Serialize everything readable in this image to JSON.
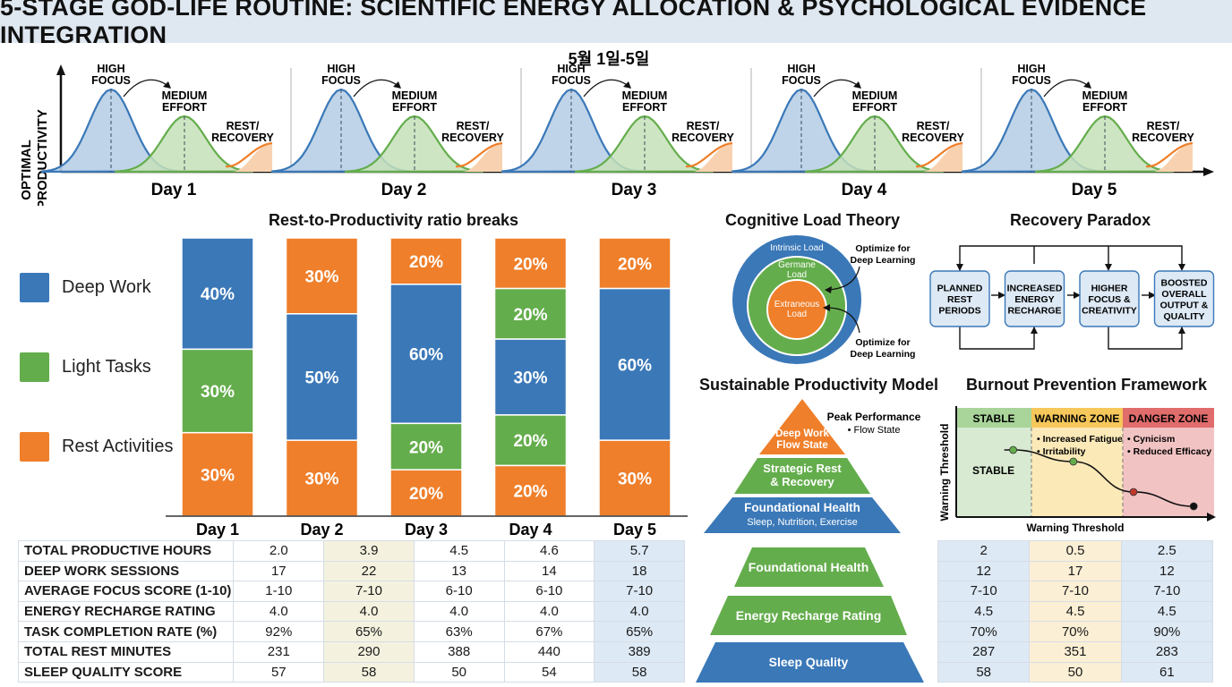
{
  "title": "5-STAGE GOD-LIFE ROUTINE: SCIENTIFIC ENERGY ALLOCATION & PSYCHOLOGICAL EVIDENCE INTEGRATION",
  "date_range": "5월 1일-5일",
  "productivity_curve": {
    "ylabel_line1": "OPTIMAL",
    "ylabel_line2": "PRODUCTIVITY",
    "phase_high_1": "HIGH",
    "phase_high_2": "FOCUS",
    "phase_medium_1": "MEDIUM",
    "phase_medium_2": "EFFORT",
    "phase_rest_1": "REST/",
    "phase_rest_2": "RECOVERY",
    "days": [
      "Day 1",
      "Day 2",
      "Day 3",
      "Day 4",
      "Day 5"
    ]
  },
  "chart_data": [
    {
      "type": "bar",
      "stacked": true,
      "title": "Rest-to-Productivity ratio breaks",
      "categories": [
        "Day 1",
        "Day 2",
        "Day 3",
        "Day 4",
        "Day 5"
      ],
      "segment_order": [
        {
          "series": "Deep Work",
          "color": "#3a78b8"
        },
        {
          "series": "Light Tasks",
          "color": "#64ad4c"
        },
        {
          "series": "Rest Activities",
          "color": "#ef7f2a"
        }
      ],
      "stacks": [
        [
          {
            "series": "Deep Work",
            "value": 40
          },
          {
            "series": "Light Tasks",
            "value": 30
          },
          {
            "series": "Rest Activities",
            "value": 30
          }
        ],
        [
          {
            "series": "Rest Activities",
            "value": 30
          },
          {
            "series": "Deep Work",
            "value": 50
          },
          {
            "series": "Rest Activities",
            "value": 30
          }
        ],
        [
          {
            "series": "Rest Activities",
            "value": 20
          },
          {
            "series": "Deep Work",
            "value": 60
          },
          {
            "series": "Light Tasks",
            "value": 20
          },
          {
            "series": "Rest Activities",
            "value": 20
          }
        ],
        [
          {
            "series": "Rest Activities",
            "value": 20
          },
          {
            "series": "Light Tasks",
            "value": 20
          },
          {
            "series": "Deep Work",
            "value": 30
          },
          {
            "series": "Light Tasks",
            "value": 20
          },
          {
            "series": "Rest Activities",
            "value": 20
          }
        ],
        [
          {
            "series": "Rest Activities",
            "value": 20
          },
          {
            "series": "Deep Work",
            "value": 60
          },
          {
            "series": "Rest Activities",
            "value": 30
          }
        ]
      ],
      "legend": [
        {
          "label": "Deep Work",
          "color": "#3a78b8"
        },
        {
          "label": "Light Tasks",
          "color": "#64ad4c"
        },
        {
          "label": "Rest Activities",
          "color": "#ef7f2a"
        }
      ],
      "legend_position": "left"
    },
    {
      "type": "line",
      "title": "Burnout Prevention Framework",
      "ylabel": "Warning Threshold",
      "xlabel": "Warning Threshold",
      "zones": [
        "STABLE",
        "WARNING ZONE",
        "DANGER ZONE"
      ],
      "points": [
        {
          "x": 1,
          "y": 0.75,
          "zone": "STABLE"
        },
        {
          "x": 2,
          "y": 0.62,
          "zone": "WARNING ZONE"
        },
        {
          "x": 3,
          "y": 0.28,
          "zone": "DANGER ZONE"
        },
        {
          "x": 4,
          "y": 0.12,
          "zone": "DANGER ZONE"
        }
      ]
    }
  ],
  "cognitive_load": {
    "title": "Cognitive Load Theory",
    "outer": "Intrinsic Load",
    "middle_1": "Germane",
    "middle_2": "Load",
    "inner_1": "Extraneous",
    "inner_2": "Load",
    "note1_1": "Optimize for",
    "note1_2": "Deep Learning",
    "note2_1": "Optimize for",
    "note2_2": "Deep Learning"
  },
  "recovery_paradox": {
    "title": "Recovery Paradox",
    "boxes": [
      [
        "PLANNED",
        "REST",
        "PERIODS"
      ],
      [
        "INCREASED",
        "ENERGY",
        "RECHARGE"
      ],
      [
        "HIGHER",
        "FOCUS &",
        "CREATIVITY"
      ],
      [
        "BOOSTED",
        "OVERALL",
        "OUTPUT &",
        "QUALITY"
      ]
    ]
  },
  "sustainable_model": {
    "title": "Sustainable Productivity Model",
    "peak_title": "Peak Performance",
    "peak_sub": "• Flow State",
    "tier_top_1": "Deep Work",
    "tier_top_2": "Flow State",
    "tier_mid_1": "Strategic Rest",
    "tier_mid_2": "& Recovery",
    "tier_base_1": "Foundational Health",
    "tier_base_2": "Sleep, Nutrition, Exercise"
  },
  "lower_pyramid": [
    "Foundational Health",
    "Energy Recharge Rating",
    "Sleep Quality"
  ],
  "burnout": {
    "zone_stable": "STABLE",
    "zone_warning": "WARNING ZONE",
    "zone_danger": "DANGER ZONE",
    "warning_notes": [
      "• Increased Fatigue",
      "• Irritability"
    ],
    "danger_notes": [
      "• Cynicism",
      "• Reduced Efficacy"
    ],
    "stable_label": "STABLE",
    "ylabel": "Warning Threshold",
    "xlabel": "Warning Threshold"
  },
  "metrics_table": {
    "rows": [
      {
        "label": "TOTAL PRODUCTIVE HOURS",
        "values": [
          "2.0",
          "3.9",
          "4.5",
          "4.6",
          "5.7"
        ]
      },
      {
        "label": "DEEP WORK SESSIONS",
        "values": [
          "17",
          "22",
          "13",
          "14",
          "18"
        ]
      },
      {
        "label": "AVERAGE FOCUS SCORE (1-10)",
        "values": [
          "1-10",
          "7-10",
          "6-10",
          "6-10",
          "7-10"
        ]
      },
      {
        "label": "ENERGY RECHARGE RATING",
        "values": [
          "4.0",
          "4.0",
          "4.0",
          "4.0",
          "4.0"
        ]
      },
      {
        "label": "TASK COMPLETION RATE (%)",
        "values": [
          "92%",
          "65%",
          "63%",
          "67%",
          "65%"
        ]
      },
      {
        "label": "TOTAL REST MINUTES",
        "values": [
          "231",
          "290",
          "388",
          "440",
          "389"
        ]
      },
      {
        "label": "SLEEP QUALITY SCORE",
        "values": [
          "57",
          "58",
          "50",
          "54",
          "58"
        ]
      }
    ]
  },
  "right_table": {
    "rows": [
      [
        "2",
        "0.5",
        "2.5"
      ],
      [
        "12",
        "17",
        "12"
      ],
      [
        "7-10",
        "7-10",
        "7-10"
      ],
      [
        "4.5",
        "4.5",
        "4.5"
      ],
      [
        "70%",
        "70%",
        "90%"
      ],
      [
        "287",
        "351",
        "283"
      ],
      [
        "58",
        "50",
        "61"
      ]
    ]
  }
}
